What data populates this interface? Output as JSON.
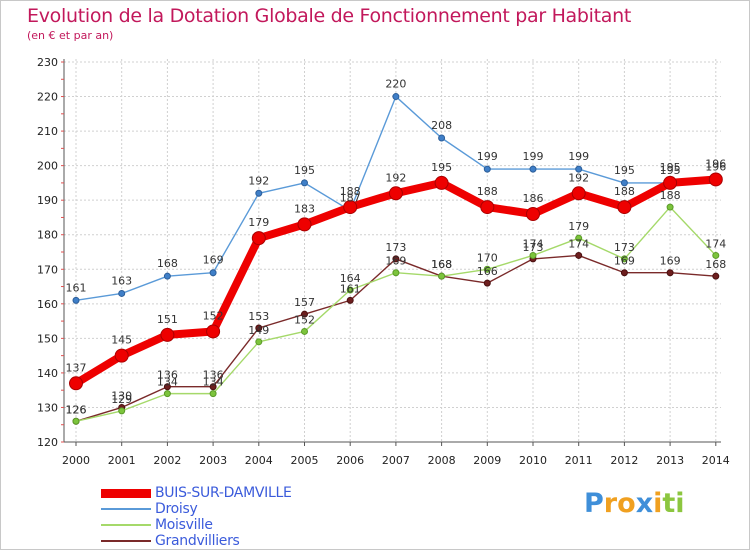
{
  "header": {
    "title": "Evolution de la Dotation Globale de Fonctionnement par Habitant",
    "subtitle": "(en € et par an)"
  },
  "logo": {
    "letters": [
      "P",
      "r",
      "o",
      "x",
      "i",
      "t",
      "i"
    ],
    "colors": [
      "#3f8fd9",
      "#f0a020",
      "#f0a020",
      "#3f8fd9",
      "#f0a020",
      "#8cc63f",
      "#8cc63f"
    ]
  },
  "chart_data": {
    "type": "line",
    "x": [
      "2000",
      "2001",
      "2002",
      "2003",
      "2004",
      "2005",
      "2006",
      "2007",
      "2008",
      "2009",
      "2010",
      "2011",
      "2012",
      "2013",
      "2014"
    ],
    "ylim": [
      120,
      230
    ],
    "yticks": [
      120,
      130,
      140,
      150,
      160,
      170,
      180,
      190,
      200,
      210,
      220,
      230
    ],
    "grid": true,
    "legend_position": "bottom-left",
    "series": [
      {
        "name": "BUIS-SUR-DAMVILLE",
        "color": "#ee0000",
        "values": [
          137,
          145,
          151,
          152,
          179,
          183,
          188,
          192,
          195,
          188,
          186,
          192,
          188,
          195,
          196
        ]
      },
      {
        "name": "Droisy",
        "color": "#4a90d9",
        "values": [
          161,
          163,
          168,
          169,
          192,
          195,
          187,
          220,
          208,
          199,
          199,
          199,
          195,
          195,
          196
        ]
      },
      {
        "name": "Moisville",
        "color": "#92d050",
        "values": [
          126,
          129,
          134,
          134,
          149,
          152,
          164,
          169,
          168,
          170,
          174,
          179,
          173,
          188,
          174
        ]
      },
      {
        "name": "Grandvilliers",
        "color": "#6e1f1f",
        "values": [
          126,
          130,
          136,
          136,
          153,
          157,
          161,
          173,
          168,
          166,
          173,
          174,
          169,
          169,
          168
        ]
      }
    ]
  }
}
